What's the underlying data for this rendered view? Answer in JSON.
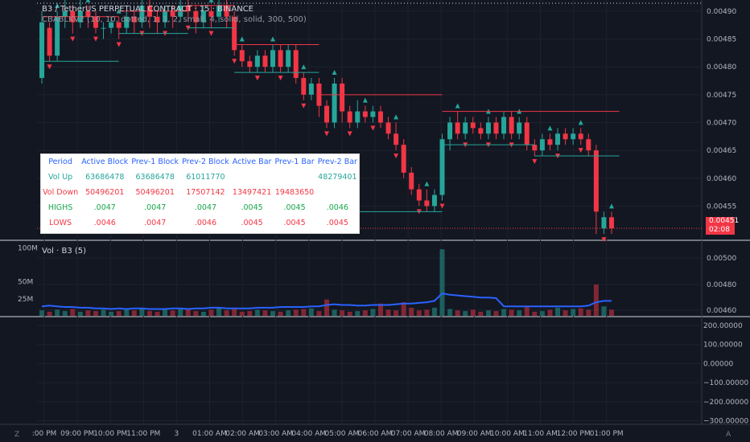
{
  "header": {
    "title": "B3 / TetherUS PERPETUAL CONTRACT · 15 · BINANCE",
    "indicator": "CBABLKV2 (10, 10, dotted, 1, 1, 2, small, 4, solid, solid, 300, 500)"
  },
  "volume_pane": {
    "title": "Vol · B3 (5)",
    "left_labels": [
      "100M",
      "50M",
      "25M"
    ],
    "right_labels": [
      "0.00500",
      "0.00480",
      "0.00460"
    ]
  },
  "price_axis": {
    "labels": [
      "0.00490",
      "0.00485",
      "0.00480",
      "0.00475",
      "0.00470",
      "0.00465",
      "0.00460",
      "0.00455"
    ],
    "current_price": "0.00451",
    "countdown": "02:08"
  },
  "oscillator_axis": {
    "labels": [
      "200.00000",
      "100.00000",
      "0.00000",
      "−100.00000",
      "−200.00000",
      "−300.00000"
    ]
  },
  "time_axis": {
    "labels": [
      ":00 PM",
      "09:00 PM",
      "10:00 PM",
      "11:00 PM",
      "3",
      "01:00 AM",
      "02:00 AM",
      "03:00 AM",
      "04:00 AM",
      "05:00 AM",
      "06:00 AM",
      "07:00 AM",
      "08:00 AM",
      "09:00 AM",
      "10:00 AM",
      "11:00 AM",
      "12:00 PM",
      "01:00 PM"
    ]
  },
  "corner_icons": {
    "left": "Z",
    "right": "A"
  },
  "stats_table": {
    "headers": [
      "Period",
      "Active Block",
      "Prev-1 Block",
      "Prev-2 Block",
      "Active Bar",
      "Prev-1 Bar",
      "Prev-2 Bar"
    ],
    "rows": [
      [
        "Vol Up",
        "63686478",
        "63686478",
        "61011770",
        "",
        "",
        "48279401"
      ],
      [
        "Vol Down",
        "50496201",
        "50496201",
        "17507142",
        "13497421",
        "19483650",
        ""
      ],
      [
        "HIGHS",
        ".0047",
        ".0047",
        ".0047",
        ".0045",
        ".0045",
        ".0046"
      ],
      [
        "LOWS",
        ".0046",
        ".0047",
        ".0046",
        ".0045",
        ".0045",
        ".0045"
      ]
    ]
  },
  "colors": {
    "background": "#131722",
    "up": "#26a69a",
    "down": "#f23645",
    "vol_ma": "#2962ff",
    "table_header": "#2962ff"
  },
  "chart_data": {
    "type": "candlestick",
    "price_ylim": [
      0.00449,
      0.00492
    ],
    "candles": [
      [
        0.00478,
        0.00488,
        0.00477,
        0.0049
      ],
      [
        0.00487,
        0.00482,
        0.00481,
        0.00488
      ],
      [
        0.00482,
        0.00489,
        0.00481,
        0.0049
      ],
      [
        0.00489,
        0.0049,
        0.00487,
        0.00492
      ],
      [
        0.0049,
        0.00488,
        0.00486,
        0.00491
      ],
      [
        0.00488,
        0.0049,
        0.00487,
        0.00492
      ],
      [
        0.0049,
        0.00489,
        0.00487,
        0.00491
      ],
      [
        0.00489,
        0.00487,
        0.00486,
        0.0049
      ],
      [
        0.00487,
        0.00487,
        0.00485,
        0.00488
      ],
      [
        0.00487,
        0.00488,
        0.00486,
        0.00489
      ],
      [
        0.00488,
        0.00487,
        0.00485,
        0.00489
      ],
      [
        0.00487,
        0.00489,
        0.00486,
        0.0049
      ],
      [
        0.00489,
        0.00488,
        0.00486,
        0.0049
      ],
      [
        0.00488,
        0.00491,
        0.00487,
        0.00492
      ],
      [
        0.00491,
        0.00489,
        0.00487,
        0.00492
      ],
      [
        0.00489,
        0.00488,
        0.00486,
        0.0049
      ],
      [
        0.00488,
        0.0049,
        0.00487,
        0.00491
      ],
      [
        0.0049,
        0.00489,
        0.00487,
        0.00491
      ],
      [
        0.00489,
        0.00491,
        0.00488,
        0.00492
      ],
      [
        0.00491,
        0.0049,
        0.00488,
        0.00492
      ],
      [
        0.0049,
        0.00488,
        0.00486,
        0.00491
      ],
      [
        0.00488,
        0.0049,
        0.00487,
        0.00491
      ],
      [
        0.0049,
        0.00489,
        0.00487,
        0.00491
      ],
      [
        0.00489,
        0.00491,
        0.00488,
        0.00492
      ],
      [
        0.00491,
        0.00489,
        0.00487,
        0.00492
      ],
      [
        0.00489,
        0.00483,
        0.00482,
        0.0049
      ],
      [
        0.00483,
        0.00481,
        0.0048,
        0.00484
      ],
      [
        0.00481,
        0.0048,
        0.00479,
        0.00482
      ],
      [
        0.0048,
        0.00482,
        0.00479,
        0.00483
      ],
      [
        0.00482,
        0.0048,
        0.00479,
        0.00483
      ],
      [
        0.0048,
        0.00483,
        0.00479,
        0.00484
      ],
      [
        0.00483,
        0.0048,
        0.00479,
        0.00484
      ],
      [
        0.0048,
        0.00483,
        0.00479,
        0.00484
      ],
      [
        0.00483,
        0.00478,
        0.00477,
        0.00484
      ],
      [
        0.00478,
        0.00475,
        0.00474,
        0.00479
      ],
      [
        0.00475,
        0.00477,
        0.00474,
        0.00478
      ],
      [
        0.00477,
        0.00473,
        0.00471,
        0.00478
      ],
      [
        0.00473,
        0.0047,
        0.00469,
        0.00474
      ],
      [
        0.0047,
        0.00477,
        0.00469,
        0.00478
      ],
      [
        0.00477,
        0.00472,
        0.0047,
        0.00478
      ],
      [
        0.00472,
        0.0047,
        0.00469,
        0.00473
      ],
      [
        0.0047,
        0.00472,
        0.00469,
        0.00474
      ],
      [
        0.00472,
        0.00471,
        0.0047,
        0.00473
      ],
      [
        0.00471,
        0.00472,
        0.0047,
        0.00473
      ],
      [
        0.00472,
        0.0047,
        0.00469,
        0.00473
      ],
      [
        0.0047,
        0.00468,
        0.00467,
        0.00471
      ],
      [
        0.00468,
        0.00466,
        0.00465,
        0.0047
      ],
      [
        0.00466,
        0.00461,
        0.0046,
        0.00467
      ],
      [
        0.00461,
        0.00458,
        0.00457,
        0.00462
      ],
      [
        0.00458,
        0.00456,
        0.00455,
        0.00459
      ],
      [
        0.00456,
        0.00455,
        0.00454,
        0.00458
      ],
      [
        0.00455,
        0.00457,
        0.00454,
        0.00458
      ],
      [
        0.00457,
        0.00467,
        0.00456,
        0.00468
      ],
      [
        0.00467,
        0.0047,
        0.00465,
        0.00471
      ],
      [
        0.0047,
        0.00468,
        0.00467,
        0.00472
      ],
      [
        0.00468,
        0.0047,
        0.00467,
        0.00471
      ],
      [
        0.0047,
        0.00469,
        0.00468,
        0.00471
      ],
      [
        0.00469,
        0.00468,
        0.00467,
        0.0047
      ],
      [
        0.00468,
        0.0047,
        0.00467,
        0.00471
      ],
      [
        0.0047,
        0.00468,
        0.00467,
        0.00471
      ],
      [
        0.00468,
        0.00471,
        0.00467,
        0.00472
      ],
      [
        0.00471,
        0.00468,
        0.00467,
        0.00472
      ],
      [
        0.00468,
        0.0047,
        0.00467,
        0.00471
      ],
      [
        0.0047,
        0.00466,
        0.00465,
        0.00471
      ],
      [
        0.00466,
        0.00465,
        0.00464,
        0.00467
      ],
      [
        0.00465,
        0.00467,
        0.00464,
        0.00468
      ],
      [
        0.00467,
        0.00466,
        0.00465,
        0.00468
      ],
      [
        0.00466,
        0.00468,
        0.00465,
        0.00469
      ],
      [
        0.00468,
        0.00467,
        0.00466,
        0.00469
      ],
      [
        0.00467,
        0.00468,
        0.00466,
        0.00469
      ],
      [
        0.00468,
        0.00467,
        0.00466,
        0.00469
      ],
      [
        0.00467,
        0.00465,
        0.00464,
        0.00468
      ],
      [
        0.00465,
        0.00454,
        0.0045,
        0.00466
      ],
      [
        0.00451,
        0.00453,
        0.0045,
        0.00454
      ],
      [
        0.00453,
        0.00451,
        0.0045,
        0.00454
      ]
    ],
    "volume_ylim": [
      0,
      110
    ],
    "volumes": [
      8,
      6,
      9,
      7,
      10,
      6,
      8,
      7,
      9,
      6,
      7,
      9,
      8,
      11,
      7,
      6,
      9,
      8,
      10,
      9,
      7,
      6,
      9,
      12,
      8,
      10,
      6,
      7,
      9,
      8,
      7,
      6,
      8,
      9,
      10,
      11,
      7,
      24,
      9,
      8,
      6,
      7,
      8,
      10,
      18,
      9,
      8,
      20,
      12,
      8,
      9,
      12,
      98,
      10,
      8,
      7,
      9,
      6,
      8,
      7,
      10,
      9,
      8,
      14,
      6,
      7,
      9,
      12,
      8,
      10,
      11,
      9,
      46,
      14,
      9
    ],
    "volume_ma": [
      14,
      15,
      14,
      13,
      13,
      12,
      12,
      11,
      11,
      10,
      11,
      10,
      11,
      11,
      10,
      10,
      10,
      11,
      11,
      10,
      11,
      11,
      12,
      12,
      11,
      11,
      11,
      11,
      12,
      12,
      12,
      13,
      13,
      13,
      13,
      14,
      14,
      16,
      17,
      16,
      16,
      15,
      15,
      16,
      16,
      16,
      17,
      18,
      18,
      19,
      20,
      22,
      33,
      31,
      30,
      29,
      28,
      27,
      27,
      26,
      14,
      14,
      14,
      14,
      14,
      14,
      14,
      14,
      14,
      14,
      14,
      15,
      20,
      22,
      22
    ]
  }
}
